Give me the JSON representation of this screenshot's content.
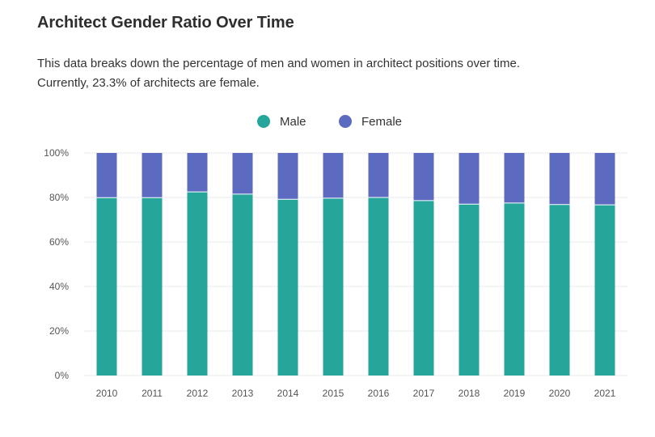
{
  "title": "Architect Gender Ratio Over Time",
  "subtitle": "This data breaks down the percentage of men and women in architect positions over time. Currently, 23.3% of architects are female.",
  "legend": {
    "male_label": "Male",
    "female_label": "Female"
  },
  "colors": {
    "male": "#26a69a",
    "female": "#5c6bc0",
    "grid": "#e8e8e8",
    "axis_text": "#555555"
  },
  "chart_data": {
    "type": "bar",
    "stacked": true,
    "categories": [
      "2010",
      "2011",
      "2012",
      "2013",
      "2014",
      "2015",
      "2016",
      "2017",
      "2018",
      "2019",
      "2020",
      "2021"
    ],
    "series": [
      {
        "name": "Male",
        "values": [
          79.9,
          79.9,
          82.5,
          81.5,
          79.2,
          79.7,
          80.0,
          78.6,
          77.0,
          77.5,
          76.8,
          76.7
        ]
      },
      {
        "name": "Female",
        "values": [
          20.1,
          20.1,
          17.5,
          18.5,
          20.8,
          20.3,
          20.0,
          21.4,
          23.0,
          22.5,
          23.2,
          23.3
        ]
      }
    ],
    "y_ticks": [
      "0%",
      "20%",
      "40%",
      "60%",
      "80%",
      "100%"
    ],
    "ylim": [
      0,
      100
    ],
    "legend_position": "top-center",
    "grid": true
  }
}
